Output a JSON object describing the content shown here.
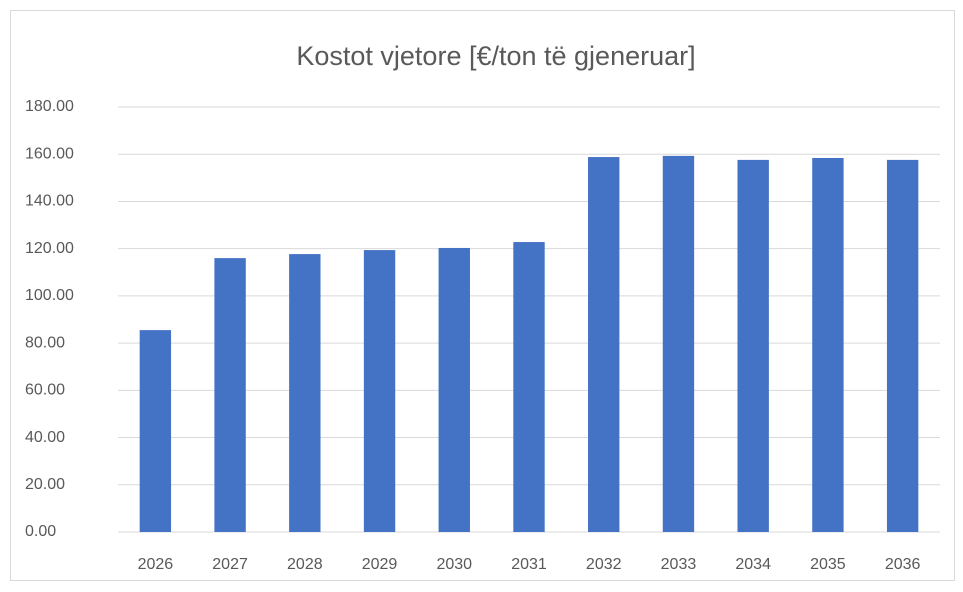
{
  "chart_data": {
    "type": "bar",
    "title": "Kostot vjetore [€/ton të gjeneruar]",
    "categories": [
      "2026",
      "2027",
      "2028",
      "2029",
      "2030",
      "2031",
      "2032",
      "2033",
      "2034",
      "2035",
      "2036"
    ],
    "values": [
      85.5,
      116.0,
      117.7,
      119.4,
      120.3,
      122.8,
      158.8,
      159.3,
      157.6,
      158.4,
      157.6
    ],
    "color": "#4472c4",
    "ylim": [
      0,
      180
    ],
    "yticks": [
      {
        "value": 0,
        "label": "0.00"
      },
      {
        "value": 20,
        "label": "20.00"
      },
      {
        "value": 40,
        "label": "40.00"
      },
      {
        "value": 60,
        "label": "60.00"
      },
      {
        "value": 80,
        "label": "80.00"
      },
      {
        "value": 100,
        "label": "100.00"
      },
      {
        "value": 120,
        "label": "120.00"
      },
      {
        "value": 140,
        "label": "140.00"
      },
      {
        "value": 160,
        "label": "160.00"
      },
      {
        "value": 180,
        "label": "180.00"
      }
    ],
    "grid": true
  }
}
